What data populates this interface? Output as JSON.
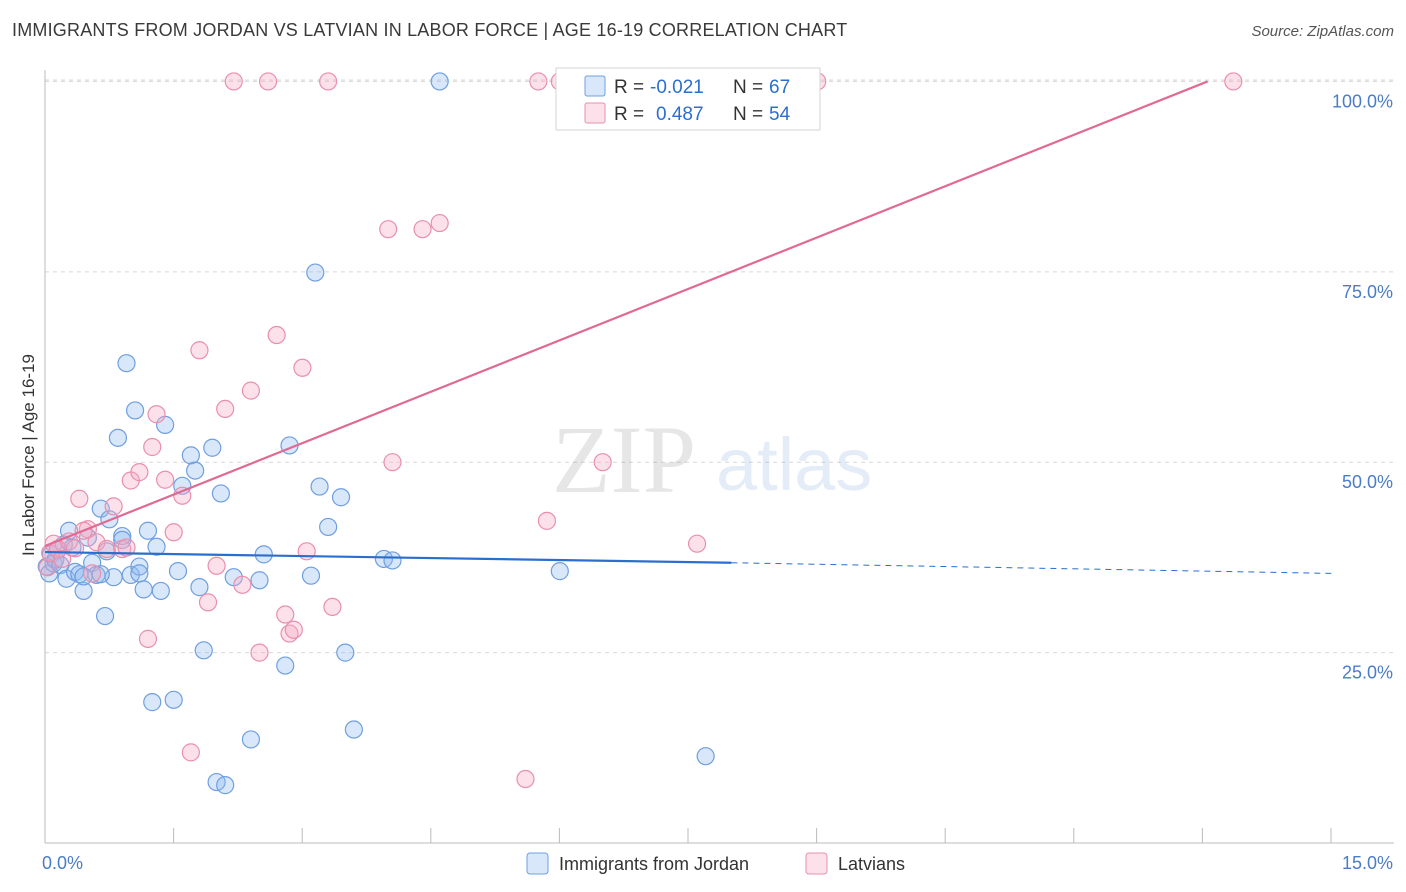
{
  "title": "IMMIGRANTS FROM JORDAN VS LATVIAN IN LABOR FORCE | AGE 16-19 CORRELATION CHART",
  "source": "Source: ZipAtlas.com",
  "watermark": {
    "zip": "ZIP",
    "atlas": "atlas"
  },
  "colors": {
    "jordan_fill": "rgba(143,185,240,0.35)",
    "jordan_stroke": "#6f9fe0",
    "jordan_line": "#2b6fce",
    "latvian_fill": "rgba(245,170,195,0.35)",
    "latvian_stroke": "#e98fae",
    "latvian_line": "#e06a94",
    "grid": "#d8d8d8",
    "label": "#4a7cc7"
  },
  "chart_data": {
    "type": "scatter",
    "title": "IMMIGRANTS FROM JORDAN VS LATVIAN IN LABOR FORCE | AGE 16-19 CORRELATION CHART",
    "xlabel": "",
    "ylabel": "In Labor Force | Age 16-19",
    "xlim": [
      0,
      15
    ],
    "ylim": [
      0,
      101.5
    ],
    "x_tick_labels": [
      "0.0%",
      "15.0%"
    ],
    "y_ticks": [
      25,
      50,
      75,
      100
    ],
    "y_tick_labels": [
      "25.0%",
      "50.0%",
      "75.0%",
      "100.0%"
    ],
    "legend": [
      {
        "series": "Immigrants from Jordan",
        "r_label": "R =",
        "r_value": "-0.021",
        "n_label": "N =",
        "n_value": "67"
      },
      {
        "series": "Latvians",
        "r_label": "R =",
        "r_value": "0.487",
        "n_label": "N =",
        "n_value": "54"
      }
    ],
    "series": [
      {
        "name": "Immigrants from Jordan",
        "trend": {
          "x0": 0.0,
          "y0": 38.2,
          "x1": 8.0,
          "y1": 36.8,
          "dash_to_x": 15.0,
          "dash_to_y": 35.4
        },
        "points": [
          [
            0.02,
            36.3
          ],
          [
            0.05,
            35.4
          ],
          [
            0.07,
            37.9
          ],
          [
            0.1,
            36.7
          ],
          [
            0.12,
            37.2
          ],
          [
            0.15,
            38.5
          ],
          [
            0.18,
            36.5
          ],
          [
            0.22,
            39.2
          ],
          [
            0.25,
            34.7
          ],
          [
            0.28,
            41.0
          ],
          [
            0.32,
            38.8
          ],
          [
            0.35,
            35.6
          ],
          [
            0.4,
            35.3
          ],
          [
            0.45,
            33.1
          ],
          [
            0.5,
            40.1
          ],
          [
            0.55,
            36.8
          ],
          [
            0.6,
            35.2
          ],
          [
            0.65,
            43.9
          ],
          [
            0.7,
            29.8
          ],
          [
            0.72,
            38.3
          ],
          [
            0.75,
            42.5
          ],
          [
            0.8,
            34.9
          ],
          [
            0.85,
            53.2
          ],
          [
            0.9,
            40.3
          ],
          [
            0.95,
            63.0
          ],
          [
            1.0,
            35.2
          ],
          [
            1.05,
            56.8
          ],
          [
            1.1,
            36.3
          ],
          [
            1.15,
            33.3
          ],
          [
            1.2,
            41.0
          ],
          [
            1.25,
            18.5
          ],
          [
            1.3,
            38.9
          ],
          [
            1.35,
            33.1
          ],
          [
            1.4,
            54.9
          ],
          [
            1.5,
            18.8
          ],
          [
            1.55,
            35.7
          ],
          [
            1.6,
            46.9
          ],
          [
            1.7,
            50.9
          ],
          [
            1.75,
            48.9
          ],
          [
            1.8,
            33.6
          ],
          [
            1.85,
            25.3
          ],
          [
            1.95,
            51.9
          ],
          [
            2.0,
            8.0
          ],
          [
            2.05,
            45.9
          ],
          [
            2.1,
            7.6
          ],
          [
            2.2,
            34.9
          ],
          [
            2.4,
            13.6
          ],
          [
            2.5,
            34.5
          ],
          [
            2.55,
            37.9
          ],
          [
            2.8,
            23.3
          ],
          [
            2.85,
            52.2
          ],
          [
            3.1,
            35.1
          ],
          [
            3.15,
            74.9
          ],
          [
            3.2,
            46.8
          ],
          [
            3.3,
            41.5
          ],
          [
            3.45,
            45.4
          ],
          [
            3.5,
            25.0
          ],
          [
            3.6,
            14.9
          ],
          [
            3.95,
            37.3
          ],
          [
            4.05,
            37.1
          ],
          [
            4.6,
            100.0
          ],
          [
            6.0,
            35.7
          ],
          [
            7.7,
            11.4
          ],
          [
            0.45,
            35.0
          ],
          [
            0.65,
            35.3
          ],
          [
            0.9,
            39.8
          ],
          [
            1.1,
            35.4
          ]
        ]
      },
      {
        "name": "Latvians",
        "trend": {
          "x0": 0.0,
          "y0": 39.0,
          "x1": 13.55,
          "y1": 100.0
        },
        "points": [
          [
            0.03,
            36.2
          ],
          [
            0.06,
            38.1
          ],
          [
            0.1,
            39.3
          ],
          [
            0.15,
            38.6
          ],
          [
            0.2,
            37.3
          ],
          [
            0.28,
            39.6
          ],
          [
            0.35,
            38.7
          ],
          [
            0.4,
            45.2
          ],
          [
            0.5,
            41.2
          ],
          [
            0.55,
            35.4
          ],
          [
            0.6,
            39.5
          ],
          [
            0.72,
            38.6
          ],
          [
            0.8,
            44.2
          ],
          [
            0.9,
            38.6
          ],
          [
            1.0,
            47.6
          ],
          [
            1.1,
            48.7
          ],
          [
            1.2,
            26.8
          ],
          [
            1.3,
            56.3
          ],
          [
            1.4,
            47.7
          ],
          [
            1.5,
            40.8
          ],
          [
            1.6,
            45.6
          ],
          [
            1.7,
            11.9
          ],
          [
            1.8,
            64.7
          ],
          [
            1.9,
            31.6
          ],
          [
            2.0,
            36.4
          ],
          [
            2.1,
            57.0
          ],
          [
            2.2,
            100.0
          ],
          [
            2.3,
            33.9
          ],
          [
            2.4,
            59.4
          ],
          [
            2.5,
            25.0
          ],
          [
            2.6,
            100.0
          ],
          [
            2.7,
            66.7
          ],
          [
            2.8,
            30.0
          ],
          [
            2.85,
            27.5
          ],
          [
            2.9,
            28.0
          ],
          [
            3.0,
            62.4
          ],
          [
            3.05,
            38.3
          ],
          [
            3.3,
            100.0
          ],
          [
            3.35,
            31.0
          ],
          [
            4.0,
            80.6
          ],
          [
            4.05,
            50.0
          ],
          [
            4.4,
            80.6
          ],
          [
            4.6,
            81.4
          ],
          [
            5.6,
            8.4
          ],
          [
            5.75,
            100.0
          ],
          [
            5.85,
            42.3
          ],
          [
            6.0,
            100.0
          ],
          [
            6.5,
            50.0
          ],
          [
            7.6,
            39.3
          ],
          [
            9.0,
            100.0
          ],
          [
            13.85,
            100.0
          ],
          [
            1.25,
            52.0
          ],
          [
            0.45,
            41.0
          ],
          [
            0.95,
            38.8
          ]
        ]
      }
    ]
  }
}
